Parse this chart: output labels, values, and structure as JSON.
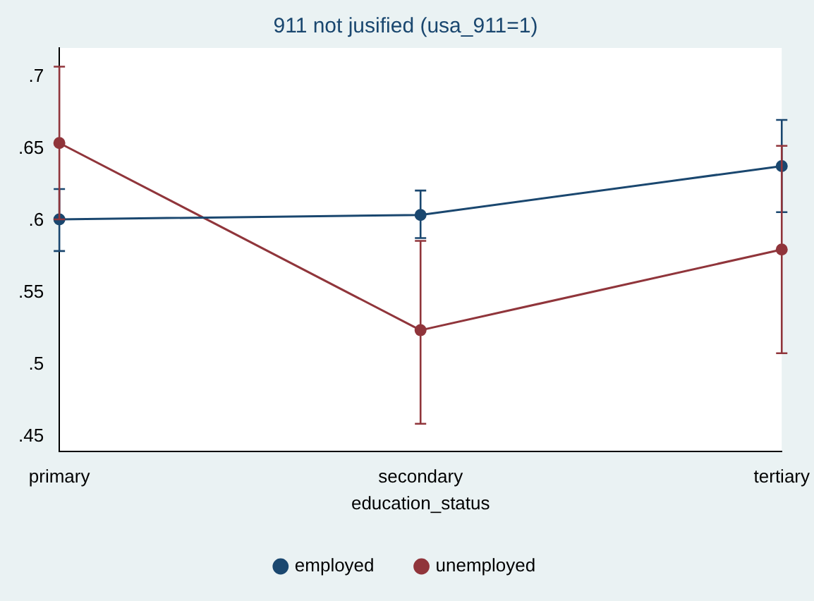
{
  "chart_data": {
    "type": "line",
    "title": "911 not jusified (usa_911=1)",
    "xlabel": "education_status",
    "categories": [
      "primary",
      "secondary",
      "tertiary"
    ],
    "series": [
      {
        "name": "employed",
        "color": "#1a476f",
        "values": [
          0.601,
          0.604,
          0.638
        ],
        "errors": [
          [
            0.579,
            0.622
          ],
          [
            0.588,
            0.621
          ],
          [
            0.606,
            0.67
          ]
        ]
      },
      {
        "name": "unemployed",
        "color": "#90353b",
        "values": [
          0.654,
          0.524,
          0.58
        ],
        "errors": [
          [
            0.601,
            0.707
          ],
          [
            0.459,
            0.586
          ],
          [
            0.508,
            0.652
          ]
        ]
      }
    ],
    "ylim": [
      0.44,
      0.72
    ],
    "yticks": [
      {
        "value": 0.45,
        "label": ".45"
      },
      {
        "value": 0.5,
        "label": ".5"
      },
      {
        "value": 0.55,
        "label": ".55"
      },
      {
        "value": 0.6,
        "label": ".6"
      },
      {
        "value": 0.65,
        "label": ".65"
      },
      {
        "value": 0.7,
        "label": ".7"
      }
    ],
    "grid": false,
    "legend": "bottom",
    "marker": "circle",
    "line_style": "solid"
  }
}
